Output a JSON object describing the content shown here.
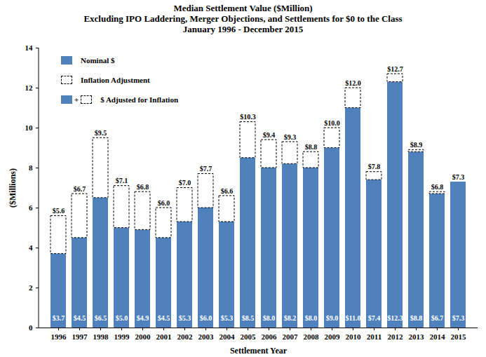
{
  "chart_data": {
    "type": "bar",
    "stacked": true,
    "title": "Median Settlement Value ($Million)",
    "subtitle": [
      "Excluding IPO Laddering, Merger Objections, and Settlements for $0 to the Class",
      "January 1996 - December 2015"
    ],
    "x_label": "Settlement Year",
    "y_label": "($Millions)",
    "categories": [
      "1996",
      "1997",
      "1998",
      "1999",
      "2000",
      "2001",
      "2002",
      "2003",
      "2004",
      "2005",
      "2006",
      "2007",
      "2008",
      "2009",
      "2010",
      "2011",
      "2012",
      "2013",
      "2014",
      "2015"
    ],
    "series": [
      {
        "name": "Nominal $",
        "type": "bar",
        "color": "#4f81bd",
        "data_labels": true,
        "values": [
          3.7,
          4.5,
          6.5,
          5.0,
          4.9,
          4.5,
          5.3,
          6.0,
          5.3,
          8.5,
          8.0,
          8.2,
          8.0,
          9.0,
          11.0,
          7.4,
          12.3,
          8.8,
          6.7,
          7.3
        ],
        "value_labels": [
          "$3.7",
          "$4.5",
          "$6.5",
          "$5.0",
          "$4.9",
          "$4.5",
          "$5.3",
          "$6.0",
          "$5.3",
          "$8.5",
          "$8.0",
          "$8.2",
          "$8.0",
          "$9.0",
          "$11.0",
          "$7.4",
          "$12.3",
          "$8.8",
          "$6.7",
          "$7.3"
        ]
      },
      {
        "name": "Inflation Adjustment",
        "type": "bar",
        "color": "#ffffff",
        "line_style": "dashed",
        "values": [
          1.9,
          2.2,
          3.0,
          2.1,
          1.9,
          1.5,
          1.7,
          1.7,
          1.3,
          1.8,
          1.4,
          1.1,
          0.8,
          1.0,
          1.0,
          0.4,
          0.4,
          0.1,
          0.1,
          0.0
        ]
      },
      {
        "name": "$ Adjusted for Inflation",
        "type": "text",
        "legend_joiner": "+",
        "data_labels": true,
        "values": [
          5.6,
          6.7,
          9.5,
          7.1,
          6.8,
          6.0,
          7.0,
          7.7,
          6.6,
          10.3,
          9.4,
          9.3,
          8.8,
          10.0,
          12.0,
          7.8,
          12.7,
          8.9,
          6.8,
          7.3
        ],
        "value_labels": [
          "$5.6",
          "$6.7",
          "$9.5",
          "$7.1",
          "$6.8",
          "$6.0",
          "$7.0",
          "$7.7",
          "$6.6",
          "$10.3",
          "$9.4",
          "$9.3",
          "$8.8",
          "$10.0",
          "$12.0",
          "$7.8",
          "$12.7",
          "$8.9",
          "$6.8",
          "$7.3"
        ]
      }
    ],
    "ylim": [
      0,
      14
    ],
    "yticks": [
      0,
      2,
      4,
      6,
      8,
      10,
      12,
      14
    ],
    "grid": false,
    "legend": "top-left"
  }
}
